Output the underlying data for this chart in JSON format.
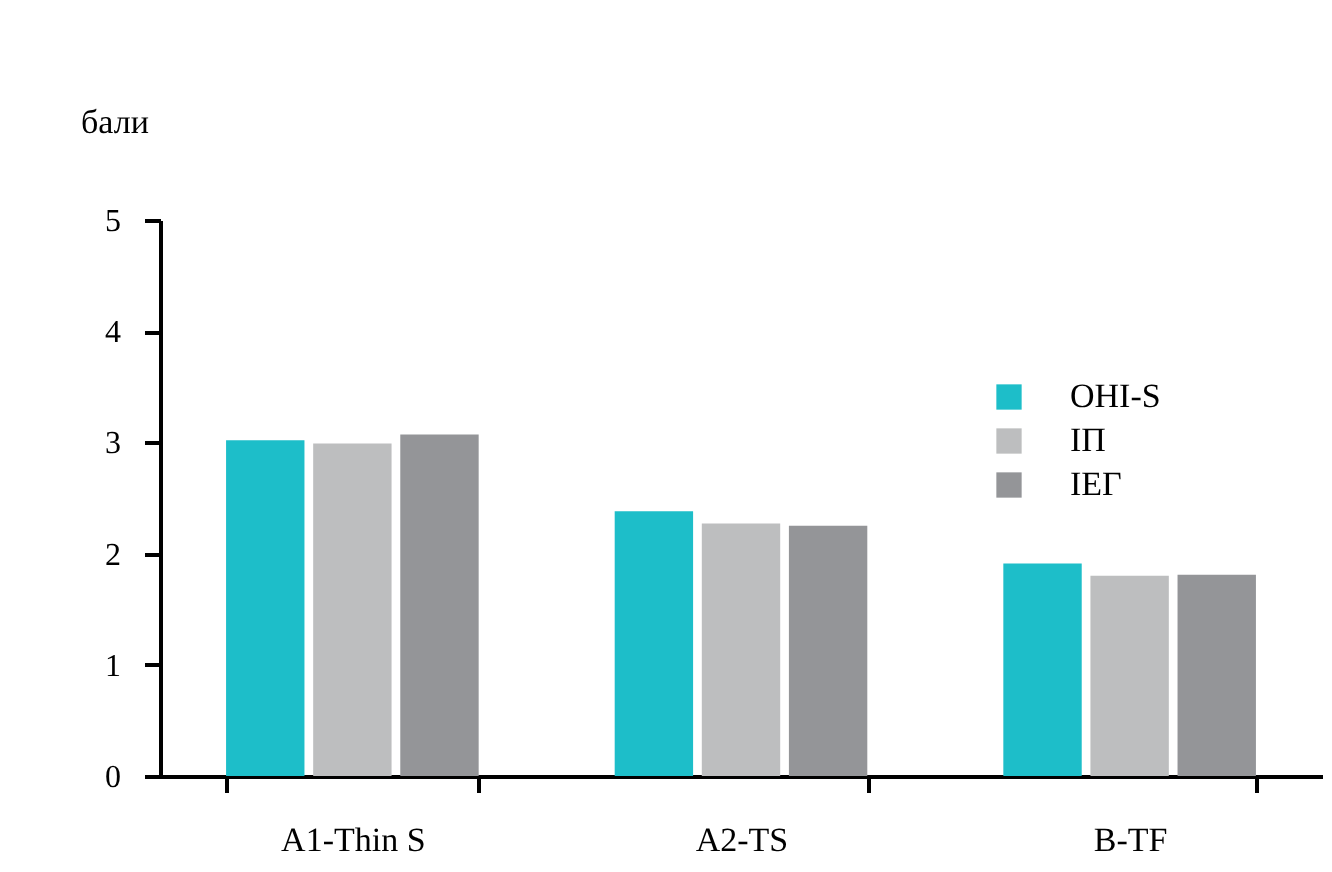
{
  "chart_data": {
    "type": "bar",
    "ylabel": "бали",
    "categories": [
      "A1-Thin S",
      "A2-TS",
      "B-TF"
    ],
    "series": [
      {
        "name": "OHI-S",
        "color": "#1dbec9",
        "values": [
          3.02,
          2.38,
          1.91
        ]
      },
      {
        "name": "IП",
        "color": "#bdbebf",
        "values": [
          2.99,
          2.27,
          1.8
        ]
      },
      {
        "name": "IEГ",
        "color": "#949598",
        "values": [
          3.07,
          2.25,
          1.81
        ]
      }
    ],
    "ylim": [
      0,
      5
    ],
    "yticks": [
      0,
      1,
      2,
      3,
      4,
      5
    ],
    "grid": false,
    "legend": "top right"
  }
}
